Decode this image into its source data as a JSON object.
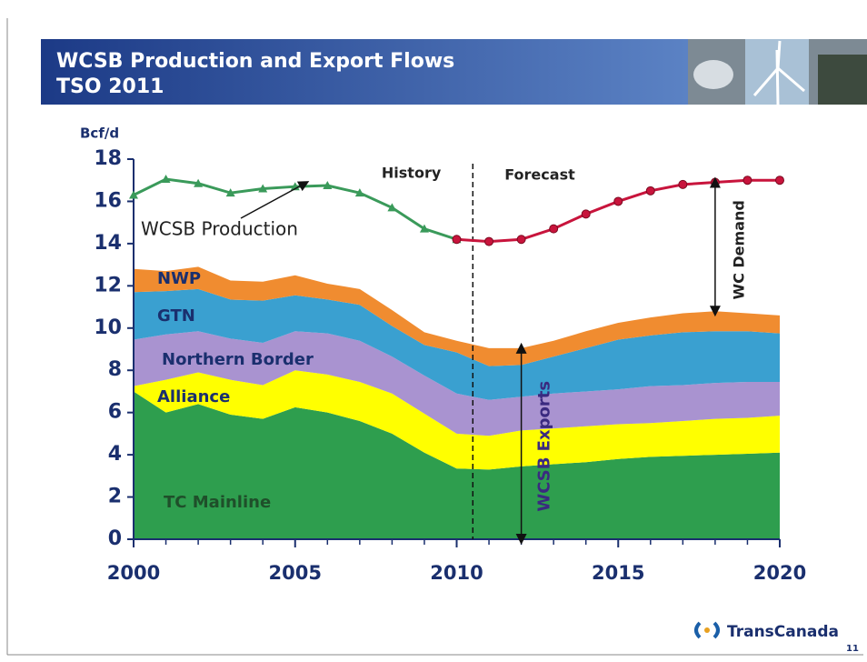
{
  "chart_data": {
    "type": "stacked_area",
    "title": "WCSB Production and Export Flows",
    "subtitle": "TSO 2011",
    "y_label": "Bcf/d",
    "x": [
      2000,
      2001,
      2002,
      2003,
      2004,
      2005,
      2006,
      2007,
      2008,
      2009,
      2010,
      2011,
      2012,
      2013,
      2014,
      2015,
      2016,
      2017,
      2018,
      2019,
      2020
    ],
    "xlim": [
      2000,
      2020
    ],
    "xticks": [
      2000,
      2005,
      2010,
      2015,
      2020
    ],
    "ylim": [
      0,
      18
    ],
    "yticks": [
      0,
      2,
      4,
      6,
      8,
      10,
      12,
      14,
      16,
      18
    ],
    "series": [
      {
        "name": "TC Mainline",
        "color": "#2e9e4e",
        "values": [
          7.0,
          6.0,
          6.4,
          5.9,
          5.7,
          6.25,
          6.0,
          5.6,
          5.0,
          4.1,
          3.35,
          3.3,
          3.45,
          3.55,
          3.65,
          3.8,
          3.9,
          3.95,
          4.0,
          4.05,
          4.1
        ]
      },
      {
        "name": "Alliance",
        "color": "#ffff00",
        "values": [
          0.25,
          1.55,
          1.5,
          1.65,
          1.6,
          1.75,
          1.8,
          1.85,
          1.9,
          1.85,
          1.65,
          1.6,
          1.7,
          1.7,
          1.7,
          1.65,
          1.6,
          1.65,
          1.7,
          1.7,
          1.75
        ]
      },
      {
        "name": "Northern Border",
        "color": "#a993d0",
        "values": [
          2.2,
          2.15,
          1.95,
          1.95,
          2.0,
          1.85,
          1.95,
          1.95,
          1.75,
          1.8,
          1.9,
          1.7,
          1.6,
          1.65,
          1.65,
          1.65,
          1.75,
          1.7,
          1.7,
          1.7,
          1.6
        ]
      },
      {
        "name": "GTN",
        "color": "#3aa0d0",
        "values": [
          2.25,
          2.05,
          2.0,
          1.85,
          2.0,
          1.7,
          1.6,
          1.7,
          1.45,
          1.45,
          1.95,
          1.6,
          1.5,
          1.75,
          2.05,
          2.35,
          2.4,
          2.5,
          2.45,
          2.4,
          2.3
        ]
      },
      {
        "name": "NWP",
        "color": "#f08c30",
        "values": [
          1.1,
          0.95,
          1.05,
          0.9,
          0.9,
          0.95,
          0.75,
          0.75,
          0.75,
          0.6,
          0.55,
          0.85,
          0.8,
          0.75,
          0.8,
          0.8,
          0.85,
          0.9,
          0.95,
          0.85,
          0.85
        ]
      }
    ],
    "lines": [
      {
        "name": "WCSB Production",
        "color": "#3a9a5a",
        "marker": "triangle",
        "values": [
          16.3,
          17.05,
          16.85,
          16.4,
          16.6,
          16.7,
          16.75,
          16.4,
          15.7,
          14.7,
          14.2,
          null,
          null,
          null,
          null,
          null,
          null,
          null,
          null,
          null,
          null
        ]
      },
      {
        "color": "#c8143c",
        "marker": "circle",
        "values": [
          null,
          null,
          null,
          null,
          null,
          null,
          null,
          null,
          null,
          null,
          14.2,
          14.1,
          14.2,
          14.7,
          15.4,
          16.0,
          16.5,
          16.8,
          16.9,
          17.0,
          17.0
        ]
      }
    ],
    "divider": {
      "x": 2010.5,
      "left_label": "History",
      "right_label": "Forecast"
    },
    "annotations": {
      "wc_demand": "WC Demand",
      "wcsb_exports": "WCSB Exports"
    }
  },
  "footer": {
    "company": "TransCanada",
    "page": "11"
  }
}
